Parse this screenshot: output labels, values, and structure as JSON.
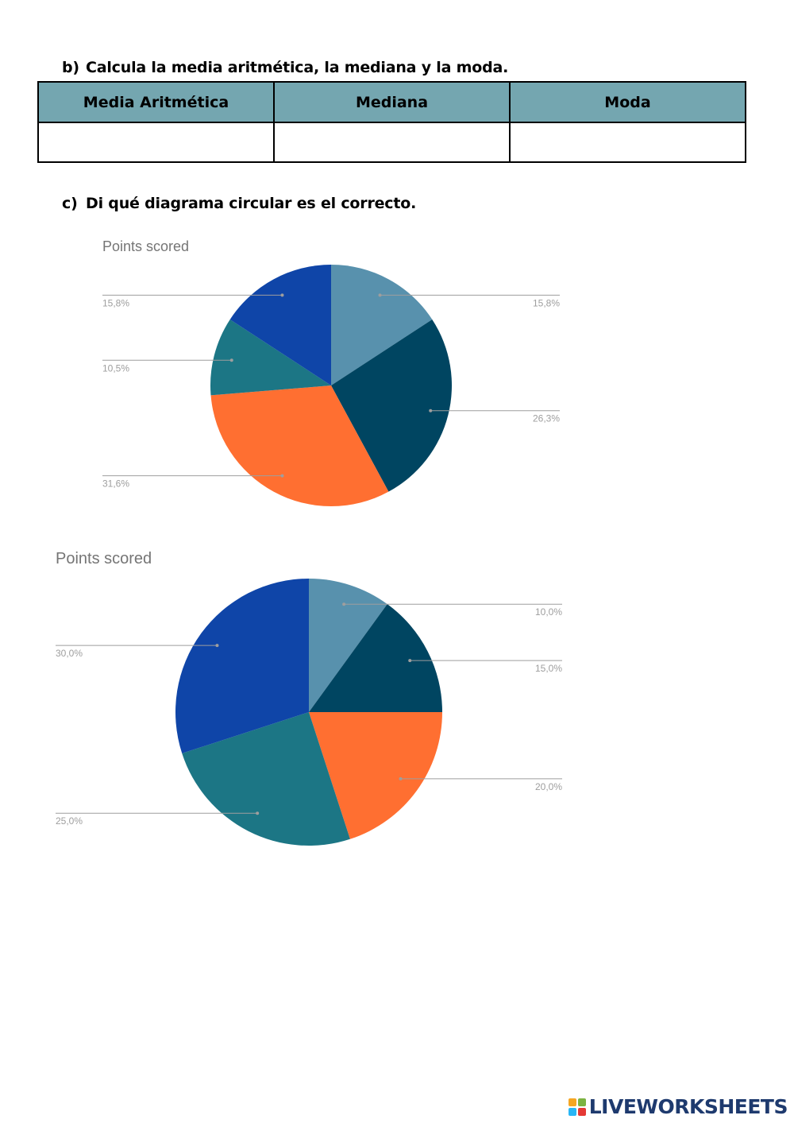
{
  "questions": {
    "b": {
      "letter": "b)",
      "text": "Calcula la media aritmética, la mediana y la moda."
    },
    "c": {
      "letter": "c)",
      "text": "Di qué diagrama circular es el correcto."
    }
  },
  "answer_table": {
    "headers": [
      "Media Aritmética",
      "Mediana",
      "Moda"
    ],
    "rows": [
      [
        "",
        "",
        ""
      ]
    ],
    "header_color": "#74a6b0"
  },
  "chart_data": [
    {
      "type": "pie",
      "title": "Points scored",
      "start": "12 o'clock, clockwise",
      "slices": [
        {
          "value": 15.8,
          "label": "15,8%",
          "color": "#5891ad"
        },
        {
          "value": 26.3,
          "label": "26,3%",
          "color": "#004561"
        },
        {
          "value": 31.6,
          "label": "31,6%",
          "color": "#ff6f31"
        },
        {
          "value": 10.5,
          "label": "10,5%",
          "color": "#1c7685"
        },
        {
          "value": 15.8,
          "label": "15,8%",
          "color": "#0f45a8"
        }
      ]
    },
    {
      "type": "pie",
      "title": "Points scored",
      "start": "12 o'clock, clockwise",
      "slices": [
        {
          "value": 10.0,
          "label": "10,0%",
          "color": "#5891ad"
        },
        {
          "value": 15.0,
          "label": "15,0%",
          "color": "#004561"
        },
        {
          "value": 20.0,
          "label": "20,0%",
          "color": "#ff6f31"
        },
        {
          "value": 25.0,
          "label": "25,0%",
          "color": "#1c7685"
        },
        {
          "value": 30.0,
          "label": "30,0%",
          "color": "#0f45a8"
        }
      ]
    }
  ],
  "branding": {
    "text": "LIVEWORKSHEETS",
    "icon": "liveworksheets-logo-icon",
    "icon_letters": [
      "L",
      "I",
      "V",
      "E"
    ],
    "icon_colors": [
      "#f5a623",
      "#7cb342",
      "#29b6f6",
      "#e53935"
    ]
  }
}
